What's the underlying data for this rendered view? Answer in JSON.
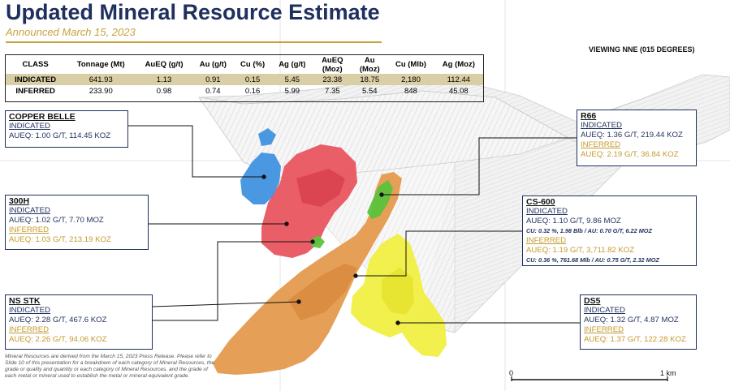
{
  "title": "Updated Mineral Resource Estimate",
  "subtitle": "Announced March 15, 2023",
  "viewing": "VIEWING NNE (015 DEGREES)",
  "colors": {
    "navy": "#1f2f5e",
    "gold": "#c49a2e",
    "indicated_row": "#d9cfa6",
    "copper_belle": "#3b8fe0",
    "deposit_300h": "#e8505b",
    "ns_stk": "#e49a4e",
    "ds5": "#f0ee3a",
    "cs600": "#5cc23c",
    "pit_shell": "#bdbdbd"
  },
  "table": {
    "headers": [
      "CLASS",
      "Tonnage (Mt)",
      "AuEQ (g/t)",
      "Au (g/t)",
      "Cu (%)",
      "Ag (g/t)",
      "AuEQ (Moz)",
      "Au (Moz)",
      "Cu (Mlb)",
      "Ag (Moz)"
    ],
    "rows": [
      [
        "INDICATED",
        "641.93",
        "1.13",
        "0.91",
        "0.15",
        "5.45",
        "23.38",
        "18.75",
        "2,180",
        "112.44"
      ],
      [
        "INFERRED",
        "233.90",
        "0.98",
        "0.74",
        "0.16",
        "5.99",
        "7.35",
        "5.54",
        "848",
        "45.08"
      ]
    ]
  },
  "callouts": {
    "copper_belle": {
      "name": "COPPER BELLE",
      "indicated_label": "INDICATED",
      "indicated_value": "AUEQ: 1.00 G/T, 114.45 KOZ"
    },
    "h300": {
      "name": "300H",
      "indicated_label": "INDICATED",
      "indicated_value": "AUEQ: 1.02 G/T, 7.70 MOZ",
      "inferred_label": "INFERRED",
      "inferred_value": "AUEQ: 1.03 G/T, 213.19 KOZ"
    },
    "ns_stk": {
      "name": "NS STK",
      "indicated_label": "INDICATED",
      "indicated_value": "AUEQ: 2.28 G/T, 467.6 KOZ",
      "inferred_label": "INFERRED",
      "inferred_value": "AUEQ: 2.26 G/T, 94.06 KOZ"
    },
    "r66": {
      "name": "R66",
      "indicated_label": "INDICATED",
      "indicated_value": "AUEQ: 1.36 G/T, 219.44 KOZ",
      "inferred_label": "INFERRED",
      "inferred_value": "AUEQ: 2.19 G/T, 36.84 KOZ"
    },
    "cs600": {
      "name": "CS-600",
      "indicated_label": "INDICATED",
      "indicated_value": "AUEQ: 1.10 G/T, 9.86 MOZ",
      "indicated_detail": "CU: 0.32 %, 1.98  Blb / AU: 0.70 G/T, 6.22 MOZ",
      "inferred_label": "INFERRED",
      "inferred_value": "AUEQ: 1.19 G/T, 3,711.82  KOZ",
      "inferred_detail": "CU: 0.36 %, 761.68  Mlb / AU: 0.75 G/T, 2.32 MOZ"
    },
    "ds5": {
      "name": "DS5",
      "indicated_label": "INDICATED",
      "indicated_value": "AUEQ: 1.32 G/T, 4.87 MOZ",
      "inferred_label": "INFERRED",
      "inferred_value": "AUEQ: 1.37 G/T, 122.28 KOZ"
    }
  },
  "footnote": "Mineral Resources are derived from the March 15, 2023 Press Release. Please refer to Slide 10 of this presentation for a breakdown of each category of Mineral Resources, the grade or quality and quantity or each category of Mineral Resources, and the grade of each metal or mineral used to establish the metal or mineral equivalent grade.",
  "scale_bar": {
    "start": "0",
    "end": "1 km"
  }
}
